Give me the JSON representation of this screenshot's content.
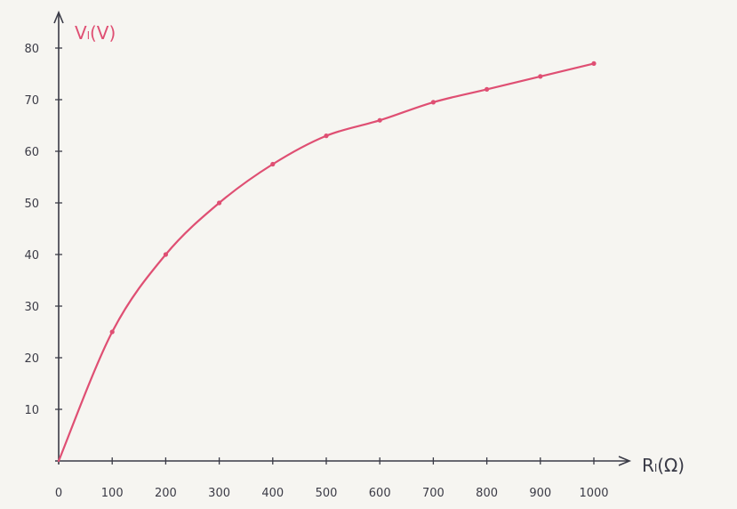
{
  "colors": {
    "paper": "#f6f5f1",
    "ink": "#3a3b47",
    "curve": "#df4f73"
  },
  "chart_data": {
    "type": "scatter",
    "title": "",
    "xlabel": "Rₗ(Ω)",
    "ylabel": "Vₗ(V)",
    "xlim": [
      0,
      1000
    ],
    "ylim": [
      0,
      80
    ],
    "x_ticks": [
      "0",
      "100",
      "200",
      "300",
      "400",
      "500",
      "600",
      "700",
      "800",
      "900",
      "1000"
    ],
    "y_ticks": [
      "10",
      "20",
      "30",
      "40",
      "50",
      "60",
      "70",
      "80"
    ],
    "grid": false,
    "legend": "none",
    "trend_line": "smooth curve through points",
    "series": [
      {
        "x": [
          100,
          200,
          300,
          400,
          500,
          600,
          700,
          800,
          900,
          1000
        ],
        "y": [
          25,
          40,
          50,
          57.5,
          63,
          66,
          69.5,
          72,
          74.5,
          77
        ]
      }
    ]
  }
}
